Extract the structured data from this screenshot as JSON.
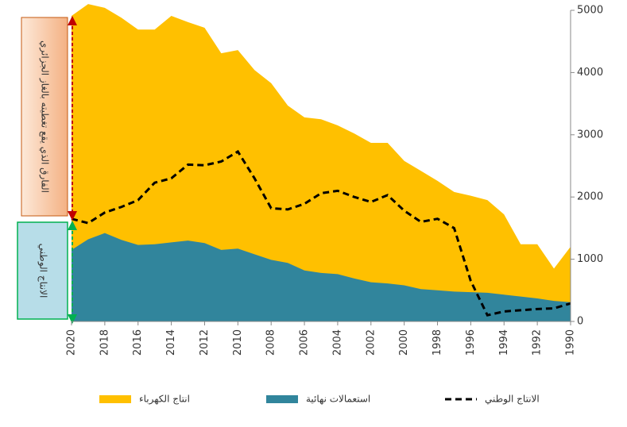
{
  "chart_data": {
    "type": "area",
    "x": [
      2020,
      2019,
      2018,
      2017,
      2016,
      2015,
      2014,
      2013,
      2012,
      2011,
      2010,
      2009,
      2008,
      2007,
      2006,
      2005,
      2004,
      2003,
      2002,
      2001,
      2000,
      1999,
      1998,
      1997,
      1996,
      1995,
      1994,
      1993,
      1992,
      1991,
      1990
    ],
    "xlim": [
      2020,
      1990
    ],
    "xticks": [
      2020,
      2018,
      2016,
      2014,
      2012,
      2010,
      2008,
      2006,
      2004,
      2002,
      2000,
      1998,
      1996,
      1994,
      1992,
      1990
    ],
    "ylim": [
      0,
      5000
    ],
    "yticks": [
      0,
      1000,
      2000,
      3000,
      4000,
      5000
    ],
    "series": [
      {
        "name": "انتاج الكهرباء",
        "type": "area",
        "color": "#ffc000",
        "values": [
          4910,
          5100,
          5040,
          4880,
          4690,
          4690,
          4910,
          4810,
          4720,
          4310,
          4360,
          4040,
          3830,
          3470,
          3280,
          3250,
          3150,
          3020,
          2870,
          2870,
          2580,
          2420,
          2260,
          2080,
          2020,
          1950,
          1720,
          1240,
          1240,
          850,
          1200
        ]
      },
      {
        "name": "استعمالات نهائية",
        "type": "area",
        "color": "#31859c",
        "values": [
          1150,
          1320,
          1420,
          1310,
          1230,
          1240,
          1270,
          1300,
          1260,
          1150,
          1170,
          1080,
          990,
          940,
          820,
          780,
          760,
          690,
          630,
          610,
          580,
          520,
          500,
          480,
          470,
          460,
          430,
          400,
          370,
          330,
          310
        ]
      },
      {
        "name": "الانتاج الوطني",
        "type": "line",
        "color": "#000000",
        "dashed": true,
        "values": [
          1650,
          1580,
          1750,
          1840,
          1950,
          2230,
          2300,
          2520,
          2510,
          2570,
          2730,
          2300,
          1820,
          1800,
          1890,
          2060,
          2100,
          2000,
          1920,
          2030,
          1780,
          1600,
          1650,
          1500,
          650,
          100,
          160,
          180,
          200,
          210,
          290
        ]
      }
    ],
    "annotations": [
      {
        "text": "الفارق الذي يقع تغطيته بالغاز الجزائري"
      },
      {
        "text": "الانتاج الوطني"
      }
    ]
  }
}
